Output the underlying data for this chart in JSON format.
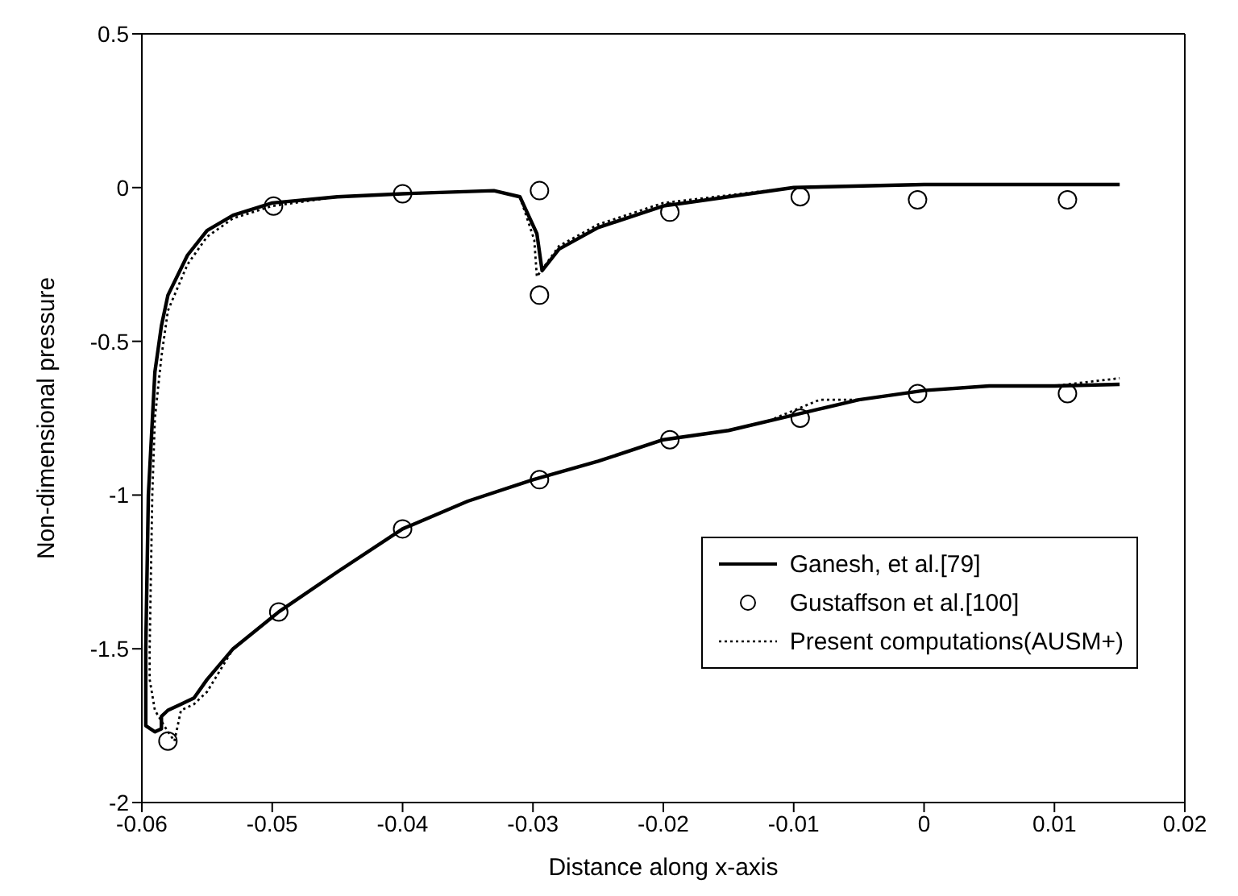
{
  "chart_data": {
    "type": "line",
    "xlabel": "Distance along x-axis",
    "ylabel": "Non-dimensional pressure",
    "xlim": [
      -0.06,
      0.02
    ],
    "xticks": [
      -0.06,
      -0.05,
      -0.04,
      -0.03,
      -0.02,
      -0.01,
      0,
      0.01,
      0.02
    ],
    "ylim": [
      -2,
      0.5
    ],
    "yticks": [
      -2,
      -1.5,
      -1,
      -0.5,
      0,
      0.5
    ],
    "grid": false,
    "legend": "bottom right",
    "series": [
      {
        "name": "Ganesh, et  al.[79]",
        "color": "#000000",
        "line_style": "solid",
        "marker": "none",
        "x": [
          0.015,
          0.0,
          -0.01,
          -0.02,
          -0.025,
          -0.028,
          -0.0293,
          -0.0297,
          -0.031,
          -0.033,
          -0.04,
          -0.045,
          -0.05,
          -0.053,
          -0.055,
          -0.0565,
          -0.058,
          -0.0585,
          -0.059,
          -0.0595,
          -0.0597,
          -0.0597,
          -0.059,
          -0.0585,
          -0.0585,
          -0.058,
          -0.057,
          -0.056,
          -0.055,
          -0.053,
          -0.0495,
          -0.045,
          -0.04,
          -0.035,
          -0.03,
          -0.025,
          -0.02,
          -0.015,
          -0.01,
          -0.005,
          0.0,
          0.005,
          0.01,
          0.015
        ],
        "values": [
          0.01,
          0.01,
          0.0,
          -0.06,
          -0.13,
          -0.2,
          -0.27,
          -0.15,
          -0.03,
          -0.01,
          -0.02,
          -0.03,
          -0.05,
          -0.09,
          -0.14,
          -0.22,
          -0.35,
          -0.45,
          -0.6,
          -1.0,
          -1.5,
          -1.75,
          -1.77,
          -1.76,
          -1.72,
          -1.7,
          -1.68,
          -1.66,
          -1.6,
          -1.5,
          -1.38,
          -1.25,
          -1.11,
          -1.02,
          -0.95,
          -0.89,
          -0.82,
          -0.79,
          -0.74,
          -0.69,
          -0.66,
          -0.645,
          -0.645,
          -0.64
        ]
      },
      {
        "name": "Gustaffson et  al.[100]",
        "type": "scatter",
        "color": "#000000",
        "marker": "circle",
        "x": [
          -0.0499,
          -0.04,
          -0.0295,
          -0.0295,
          -0.0195,
          -0.0095,
          -0.0005,
          0.011,
          -0.058,
          -0.0495,
          -0.04,
          -0.0295,
          -0.0195,
          -0.0095,
          -0.0005,
          0.011
        ],
        "values": [
          -0.06,
          -0.02,
          -0.01,
          -0.35,
          -0.08,
          -0.03,
          -0.04,
          -0.04,
          -1.8,
          -1.38,
          -1.11,
          -0.95,
          -0.82,
          -0.75,
          -0.67,
          -0.67
        ]
      },
      {
        "name": "Present computations(AUSM+)",
        "color": "#000000",
        "line_style": "dotted",
        "marker": "none",
        "x": [
          0.015,
          0.0,
          -0.01,
          -0.02,
          -0.025,
          -0.028,
          -0.0297,
          -0.0299,
          -0.031,
          -0.033,
          -0.04,
          -0.045,
          -0.05,
          -0.053,
          -0.055,
          -0.0565,
          -0.058,
          -0.0585,
          -0.059,
          -0.0592,
          -0.0594,
          -0.0594,
          -0.059,
          -0.058,
          -0.0575,
          -0.057,
          -0.056,
          -0.055,
          -0.053,
          -0.0495,
          -0.045,
          -0.04,
          -0.035,
          -0.03,
          -0.025,
          -0.02,
          -0.015,
          -0.012,
          -0.008,
          -0.005,
          0.0,
          0.005,
          0.01,
          0.015
        ],
        "values": [
          0.01,
          0.01,
          0.0,
          -0.05,
          -0.12,
          -0.19,
          -0.29,
          -0.17,
          -0.03,
          -0.01,
          -0.02,
          -0.03,
          -0.06,
          -0.1,
          -0.16,
          -0.25,
          -0.4,
          -0.55,
          -0.75,
          -1.0,
          -1.5,
          -1.6,
          -1.7,
          -1.77,
          -1.8,
          -1.7,
          -1.68,
          -1.64,
          -1.5,
          -1.38,
          -1.25,
          -1.11,
          -1.02,
          -0.95,
          -0.89,
          -0.82,
          -0.79,
          -0.76,
          -0.69,
          -0.69,
          -0.66,
          -0.645,
          -0.645,
          -0.62
        ]
      }
    ]
  }
}
